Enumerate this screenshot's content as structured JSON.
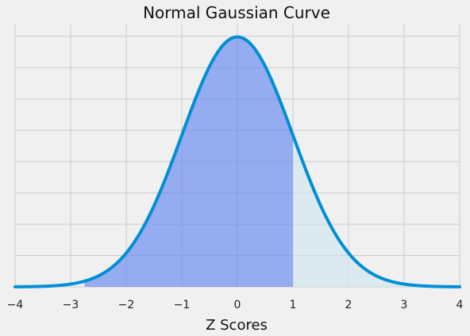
{
  "chart_data": {
    "type": "area",
    "title": "Normal Gaussian Curve",
    "xlabel": "Z Scores",
    "ylabel": "",
    "xlim": [
      -4,
      4
    ],
    "ylim": [
      0,
      0.42
    ],
    "x_ticks": [
      "−4",
      "−3",
      "−2",
      "−1",
      "0",
      "1",
      "2",
      "3",
      "4"
    ],
    "x_tick_values": [
      -4,
      -3,
      -2,
      -1,
      0,
      1,
      2,
      3,
      4
    ],
    "y_grid_values": [
      0.05,
      0.1,
      0.15,
      0.2,
      0.25,
      0.3,
      0.35,
      0.4
    ],
    "grid": true,
    "series": [
      {
        "kind": "curve",
        "function": "standard-normal-pdf",
        "mean": 0,
        "sd": 1,
        "x_range": [
          -4,
          4
        ],
        "color": "#008fd5"
      },
      {
        "kind": "shaded-region",
        "x_range": [
          -2.75,
          1
        ],
        "color": "#6f8ff0"
      },
      {
        "kind": "shaded-region",
        "x_range": [
          1,
          4
        ],
        "color": "#cfe6ee"
      }
    ]
  }
}
